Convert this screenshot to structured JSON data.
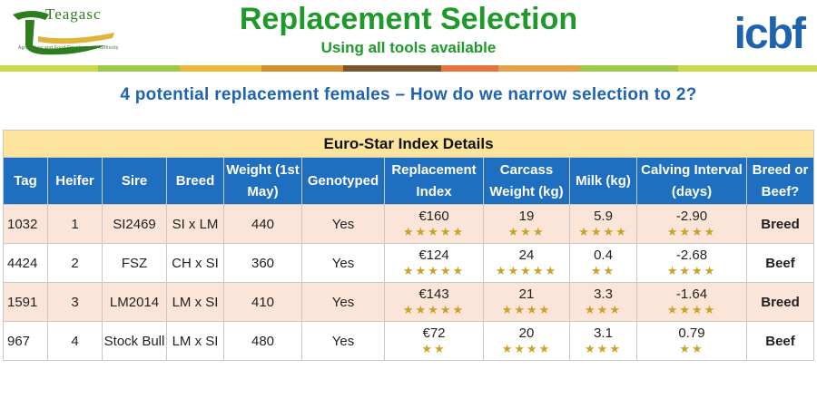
{
  "header": {
    "title": "Replacement Selection",
    "subtitle": "Using all tools available",
    "left_logo": {
      "word": "Teagasc",
      "tagline": "Agriculture and Food Development Authority"
    },
    "right_logo": {
      "word": "icbf"
    },
    "band_colors": [
      "#c9d94a",
      "#9dc84a",
      "#e9b93c",
      "#d38c2e",
      "#7a5532",
      "#e7733c",
      "#e6a24b",
      "#9dc84a",
      "#c9d94a"
    ]
  },
  "question": "4 potential replacement females – How do we narrow selection to 2?",
  "table": {
    "caption": "Euro-Star Index Details",
    "headers": [
      "Tag",
      "Heifer",
      "Sire",
      "Breed",
      "Weight (1st May)",
      "Genotyped",
      "Replacement Index",
      "Carcass Weight (kg)",
      "Milk (kg)",
      "Calving Interval (days)",
      "Breed or Beef?"
    ],
    "rows": [
      {
        "tag": "1032",
        "heifer": "1",
        "sire": "SI2469",
        "breed": "SI x LM",
        "weight": "440",
        "genotyped": "Yes",
        "replacement": "€160",
        "replacement_stars": "★★★★★",
        "carcass": "19",
        "carcass_stars": "★★★",
        "milk": "5.9",
        "milk_stars": "★★★★",
        "calving": "-2.90",
        "calving_stars": "★★★★",
        "decision": "Breed"
      },
      {
        "tag": "4424",
        "heifer": "2",
        "sire": "FSZ",
        "breed": "CH x SI",
        "weight": "360",
        "genotyped": "Yes",
        "replacement": "€124",
        "replacement_stars": "★★★★★",
        "carcass": "24",
        "carcass_stars": "★★★★★",
        "milk": "0.4",
        "milk_stars": "★★",
        "calving": "-2.68",
        "calving_stars": "★★★★",
        "decision": "Beef"
      },
      {
        "tag": "1591",
        "heifer": "3",
        "sire": "LM2014",
        "breed": "LM x SI",
        "weight": "410",
        "genotyped": "Yes",
        "replacement": "€143",
        "replacement_stars": "★★★★★",
        "carcass": "21",
        "carcass_stars": "★★★★",
        "milk": "3.3",
        "milk_stars": "★★★",
        "calving": "-1.64",
        "calving_stars": "★★★★",
        "decision": "Breed"
      },
      {
        "tag": "967",
        "heifer": "4",
        "sire": "Stock Bull",
        "breed": "LM x SI",
        "weight": "480",
        "genotyped": "Yes",
        "replacement": "€72",
        "replacement_stars": "★★",
        "carcass": "20",
        "carcass_stars": "★★★★",
        "milk": "3.1",
        "milk_stars": "★★★",
        "calving": "0.79",
        "calving_stars": "★★",
        "decision": "Beef"
      }
    ]
  }
}
